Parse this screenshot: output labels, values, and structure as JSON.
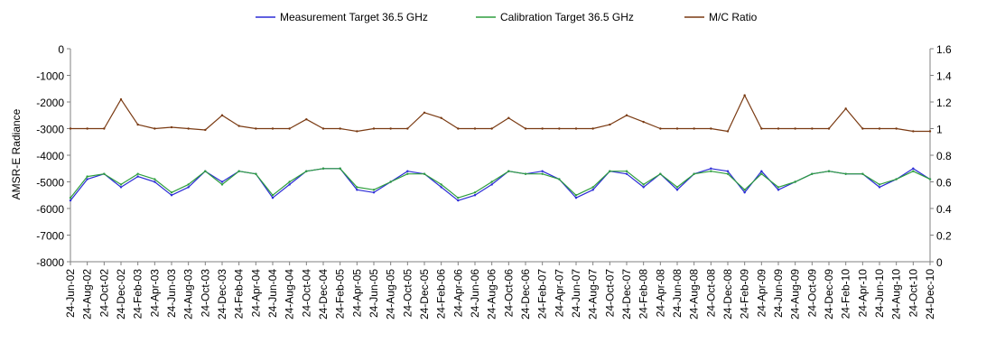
{
  "chart_data": {
    "type": "line",
    "title": "",
    "ylabel": "AMSR-E Radiance",
    "y2label": "",
    "xlabel": "",
    "ylim": [
      -8000,
      0
    ],
    "y2lim": [
      0,
      1.6
    ],
    "yticks": [
      "0",
      "-1000",
      "-2000",
      "-3000",
      "-4000",
      "-5000",
      "-6000",
      "-7000",
      "-8000"
    ],
    "y2ticks": [
      "1.6",
      "1.4",
      "1.2",
      "1",
      "0.8",
      "0.6",
      "0.4",
      "0.2",
      "0"
    ],
    "grid": false,
    "legend_position": "top",
    "categories": [
      "24-Jun-02",
      "24-Aug-02",
      "24-Oct-02",
      "24-Dec-02",
      "24-Feb-03",
      "24-Apr-03",
      "24-Jun-03",
      "24-Aug-03",
      "24-Oct-03",
      "24-Dec-03",
      "24-Feb-04",
      "24-Apr-04",
      "24-Jun-04",
      "24-Aug-04",
      "24-Oct-04",
      "24-Dec-04",
      "24-Feb-05",
      "24-Apr-05",
      "24-Jun-05",
      "24-Aug-05",
      "24-Oct-05",
      "24-Dec-05",
      "24-Feb-06",
      "24-Apr-06",
      "24-Jun-06",
      "24-Aug-06",
      "24-Oct-06",
      "24-Dec-06",
      "24-Feb-07",
      "24-Apr-07",
      "24-Jun-07",
      "24-Aug-07",
      "24-Oct-07",
      "24-Dec-07",
      "24-Feb-08",
      "24-Apr-08",
      "24-Jun-08",
      "24-Aug-08",
      "24-Oct-08",
      "24-Dec-08",
      "24-Feb-09",
      "24-Apr-09",
      "24-Jun-09",
      "24-Aug-09",
      "24-Oct-09",
      "24-Dec-09",
      "24-Feb-10",
      "24-Apr-10",
      "24-Jun-10",
      "24-Aug-10",
      "24-Oct-10",
      "24-Dec-10"
    ],
    "series": [
      {
        "name": "Measurement Target 36.5 GHz",
        "axis": "left",
        "color": "#2b2bd6",
        "values": [
          -5700,
          -4900,
          -4700,
          -5200,
          -4800,
          -5000,
          -5500,
          -5200,
          -4600,
          -5000,
          -4600,
          -4700,
          -5600,
          -5100,
          -4600,
          -4500,
          -4500,
          -5300,
          -5400,
          -5000,
          -4600,
          -4700,
          -5200,
          -5700,
          -5500,
          -5100,
          -4600,
          -4700,
          -4600,
          -4900,
          -5600,
          -5300,
          -4600,
          -4700,
          -5200,
          -4700,
          -5300,
          -4700,
          -4500,
          -4600,
          -5400,
          -4600,
          -5300,
          -5000,
          -4700,
          -4600,
          -4700,
          -4700,
          -5200,
          -4900,
          -4500,
          -4900
        ]
      },
      {
        "name": "Calibration Target 36.5 GHz",
        "axis": "left",
        "color": "#2e9e3e",
        "values": [
          -5600,
          -4800,
          -4700,
          -5100,
          -4700,
          -4900,
          -5400,
          -5100,
          -4600,
          -5100,
          -4600,
          -4700,
          -5500,
          -5000,
          -4600,
          -4500,
          -4500,
          -5200,
          -5300,
          -5000,
          -4700,
          -4700,
          -5100,
          -5600,
          -5400,
          -5000,
          -4600,
          -4700,
          -4700,
          -4900,
          -5500,
          -5200,
          -4600,
          -4600,
          -5100,
          -4700,
          -5200,
          -4700,
          -4600,
          -4700,
          -5300,
          -4700,
          -5200,
          -5000,
          -4700,
          -4600,
          -4700,
          -4700,
          -5100,
          -4900,
          -4600,
          -4900
        ]
      },
      {
        "name": "M/C Ratio",
        "axis": "right",
        "color": "#7a3a12",
        "values": [
          1.0,
          1.0,
          1.0,
          1.22,
          1.03,
          1.0,
          1.01,
          1.0,
          0.99,
          1.1,
          1.02,
          1.0,
          1.0,
          1.0,
          1.07,
          1.0,
          1.0,
          0.98,
          1.0,
          1.0,
          1.0,
          1.12,
          1.08,
          1.0,
          1.0,
          1.0,
          1.08,
          1.0,
          1.0,
          1.0,
          1.0,
          1.0,
          1.03,
          1.1,
          1.05,
          1.0,
          1.0,
          1.0,
          1.0,
          0.98,
          1.25,
          1.0,
          1.0,
          1.0,
          1.0,
          1.0,
          1.15,
          1.0,
          1.0,
          1.0,
          0.98,
          0.98
        ]
      }
    ]
  },
  "legend": {
    "measurement": "Measurement Target 36.5 GHz",
    "calibration": "Calibration Target 36.5 GHz",
    "ratio": "M/C Ratio"
  }
}
